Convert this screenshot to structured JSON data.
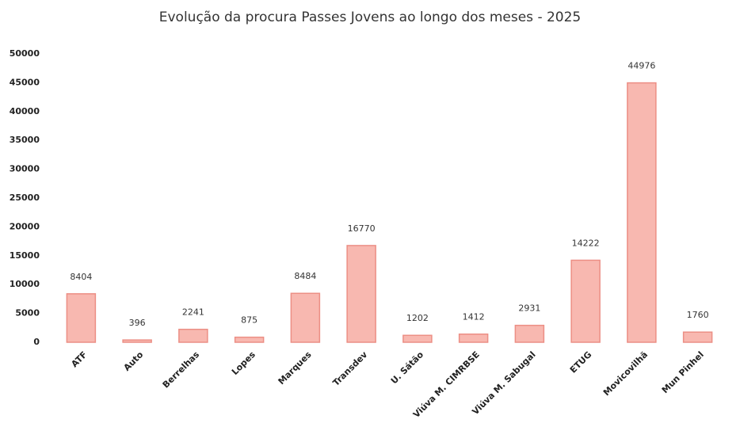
{
  "chart_data": {
    "type": "bar",
    "title": "Evolução da procura Passes Jovens ao longo dos meses - 2025",
    "categories": [
      "ATF",
      "Auto",
      "Berrelhas",
      "Lopes",
      "Marques",
      "Transdev",
      "U. Sátão",
      "Viúva M. CIMRBSE",
      "Viúva M. Sabugal",
      "ETUG",
      "Movicovilhã",
      "Mun Pinhel"
    ],
    "values": [
      8404,
      396,
      2241,
      875,
      8484,
      16770,
      1202,
      1412,
      2931,
      14222,
      44976,
      1760
    ],
    "color": "#f8b8b0",
    "ylim": [
      0,
      50000
    ],
    "yticks": [
      0,
      5000,
      10000,
      15000,
      20000,
      25000,
      30000,
      35000,
      40000,
      45000,
      50000
    ],
    "grid": false
  }
}
